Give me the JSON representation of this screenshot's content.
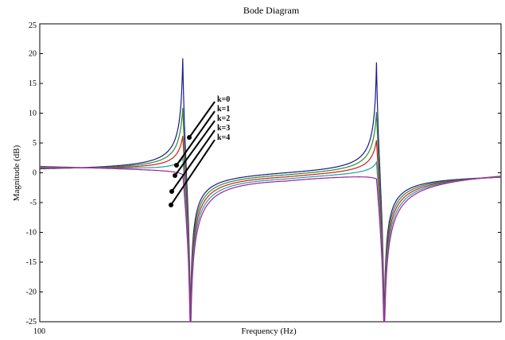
{
  "chart_data": {
    "type": "line",
    "title": "Bode Diagram",
    "xlabel": "Frequency  (Hz)",
    "ylabel": "Magnitude (dB)",
    "xlim": [
      100,
      400
    ],
    "ylim": [
      -25,
      25
    ],
    "x_tick_labels": [
      "100"
    ],
    "y_ticks": [
      -25,
      -20,
      -15,
      -10,
      -5,
      0,
      5,
      10,
      15,
      20,
      25
    ],
    "y_tick_labels": [
      "-25",
      "-20",
      "-15",
      "-10",
      "-5",
      "0",
      "5",
      "10",
      "15",
      "20",
      "25"
    ],
    "grid": false,
    "legend": "none",
    "poles": [
      193,
      319
    ],
    "zeros": [
      198,
      324
    ],
    "series": [
      {
        "name": "k=0",
        "color": "#1a1a8c",
        "values_at_keypoints": {
          "x": [
            100,
            160,
            185,
            200,
            260,
            300,
            315,
            330,
            400
          ],
          "y": [
            0,
            0.3,
            2,
            -20,
            0,
            1.5,
            5,
            -4,
            -1
          ]
        }
      },
      {
        "name": "k=1",
        "color": "#2e8b2e",
        "values_at_keypoints": {
          "x": [
            100,
            160,
            185,
            205,
            260,
            300,
            312,
            335,
            400
          ],
          "y": [
            0,
            0,
            -0.5,
            -20,
            0,
            1,
            2,
            -3,
            -1
          ]
        }
      },
      {
        "name": "k=2",
        "color": "#cc2020",
        "values_at_keypoints": {
          "x": [
            100,
            160,
            185,
            205,
            260,
            300,
            312,
            335,
            400
          ],
          "y": [
            -0.3,
            -0.8,
            -1.5,
            -20,
            0,
            0.5,
            1,
            -6,
            -1.5
          ]
        }
      },
      {
        "name": "k=3",
        "color": "#20a0a0",
        "values_at_keypoints": {
          "x": [
            100,
            160,
            185,
            205,
            260,
            300,
            312,
            335,
            400
          ],
          "y": [
            -0.5,
            -1.5,
            -3,
            -20,
            0,
            -0.5,
            -1.5,
            -8,
            -2
          ]
        }
      },
      {
        "name": "k=4",
        "color": "#a020a0",
        "values_at_keypoints": {
          "x": [
            100,
            160,
            185,
            205,
            260,
            300,
            312,
            335,
            400
          ],
          "y": [
            -0.8,
            -2.5,
            -5,
            -25,
            0,
            -1.5,
            -3.5,
            -10,
            -2.5
          ]
        }
      }
    ],
    "annotations": [
      "k=0",
      "k=1",
      "k=2",
      "k=3",
      "k=4"
    ]
  }
}
